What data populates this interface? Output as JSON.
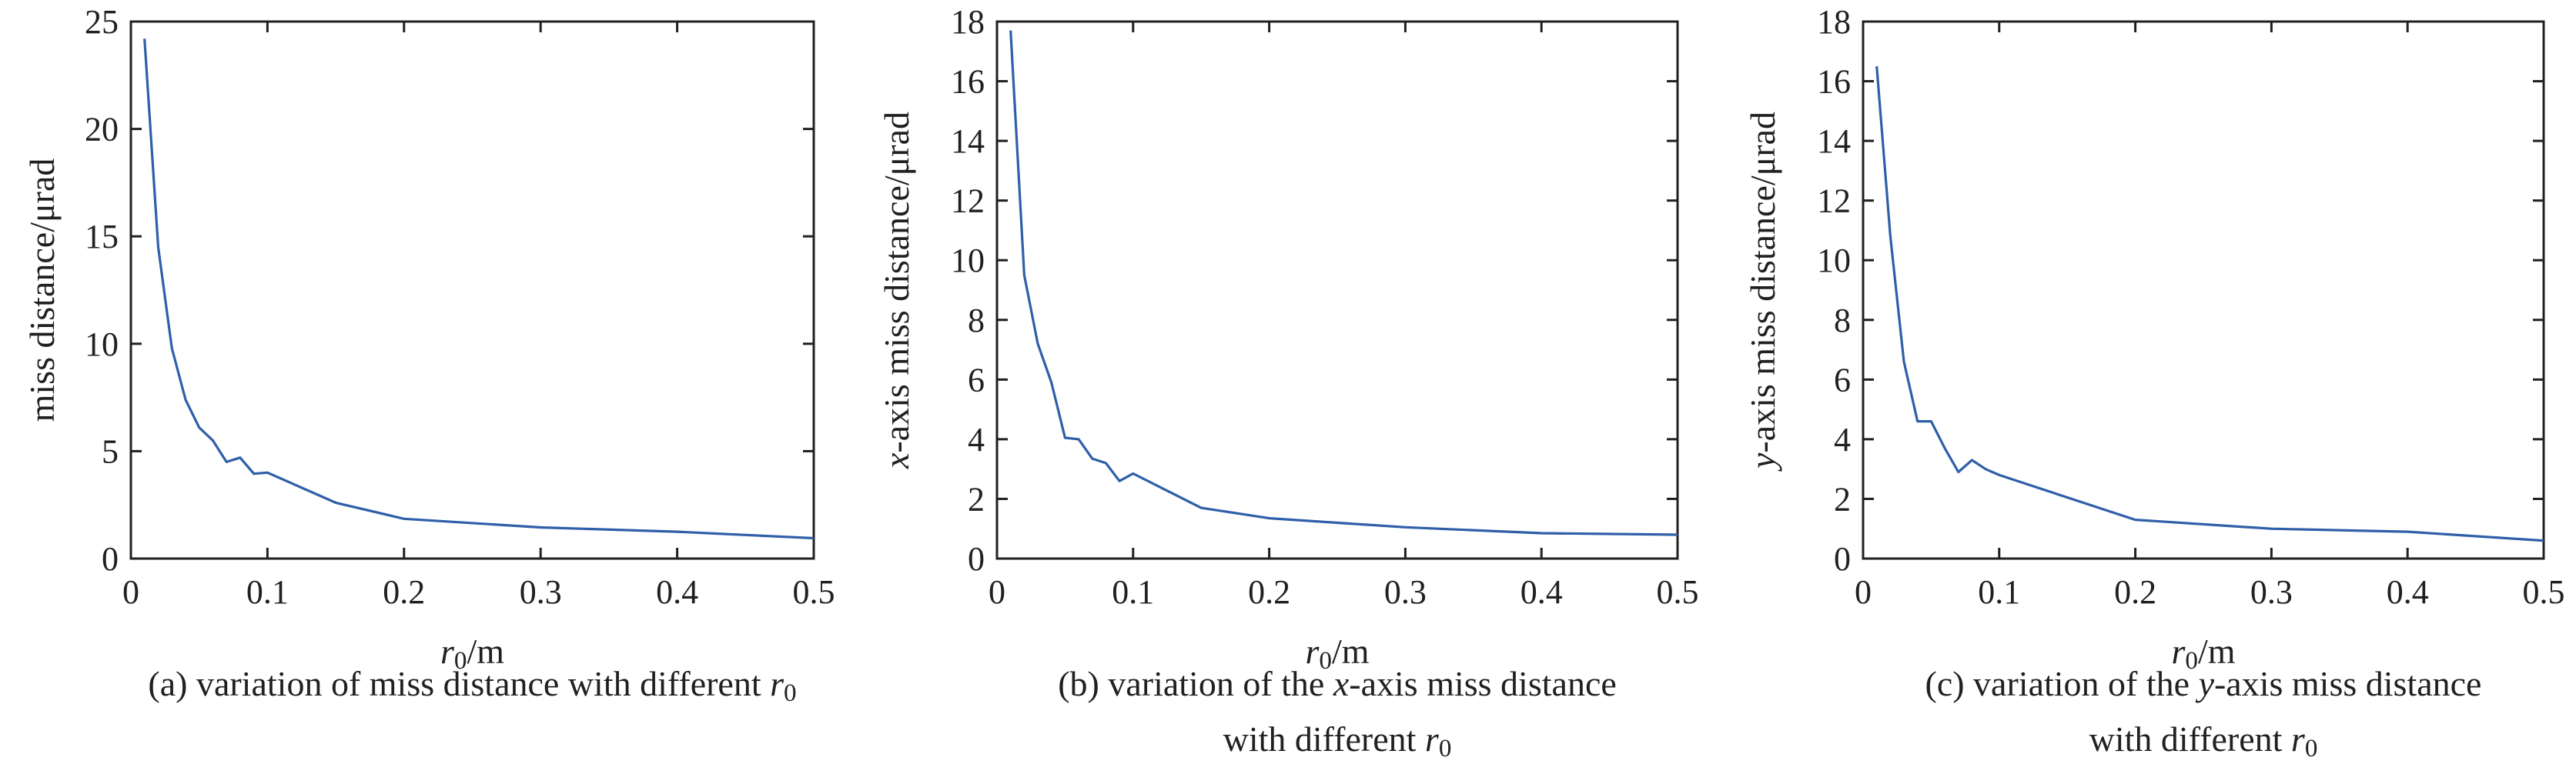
{
  "chart_data": [
    {
      "type": "line",
      "caption_lines": [
        [
          {
            "text": "(a) variation of miss distance with different ",
            "style": "normal"
          },
          {
            "text": "r",
            "style": "italic"
          },
          {
            "text": "0",
            "style": "sub"
          }
        ]
      ],
      "xlabel": [
        {
          "text": "r",
          "style": "italic"
        },
        {
          "text": "0",
          "style": "sub"
        },
        {
          "text": "/m",
          "style": "normal"
        }
      ],
      "ylabel": [
        {
          "text": "miss distance/μrad",
          "style": "normal"
        }
      ],
      "xlim": [
        0,
        0.5
      ],
      "ylim": [
        0,
        25
      ],
      "xticks": [
        "0",
        "0.1",
        "0.2",
        "0.3",
        "0.4",
        "0.5"
      ],
      "yticks": [
        "0",
        "5",
        "10",
        "15",
        "20",
        "25"
      ],
      "color": "#2e5fa8",
      "grid": false,
      "series": [
        {
          "x": [
            0.01,
            0.02,
            0.03,
            0.04,
            0.05,
            0.06,
            0.07,
            0.08,
            0.09,
            0.1,
            0.15,
            0.2,
            0.3,
            0.4,
            0.5
          ],
          "y": [
            24.2,
            14.5,
            9.8,
            7.4,
            6.1,
            5.5,
            4.5,
            4.7,
            3.95,
            4.0,
            2.6,
            1.85,
            1.45,
            1.25,
            0.95
          ]
        }
      ]
    },
    {
      "type": "line",
      "caption_lines": [
        [
          {
            "text": "(b) variation of the ",
            "style": "normal"
          },
          {
            "text": "x",
            "style": "italic"
          },
          {
            "text": "-axis miss distance",
            "style": "normal"
          }
        ],
        [
          {
            "text": "with different ",
            "style": "normal"
          },
          {
            "text": "r",
            "style": "italic"
          },
          {
            "text": "0",
            "style": "sub"
          }
        ]
      ],
      "xlabel": [
        {
          "text": "r",
          "style": "italic"
        },
        {
          "text": "0",
          "style": "sub"
        },
        {
          "text": "/m",
          "style": "normal"
        }
      ],
      "ylabel": [
        {
          "text": "x",
          "style": "italic"
        },
        {
          "text": "-axis miss distance/μrad",
          "style": "normal"
        }
      ],
      "xlim": [
        0,
        0.5
      ],
      "ylim": [
        0,
        18
      ],
      "xticks": [
        "0",
        "0.1",
        "0.2",
        "0.3",
        "0.4",
        "0.5"
      ],
      "yticks": [
        "0",
        "2",
        "4",
        "6",
        "8",
        "10",
        "12",
        "14",
        "16",
        "18"
      ],
      "color": "#2e5fa8",
      "grid": false,
      "series": [
        {
          "x": [
            0.01,
            0.02,
            0.03,
            0.04,
            0.05,
            0.06,
            0.07,
            0.08,
            0.09,
            0.1,
            0.15,
            0.2,
            0.3,
            0.4,
            0.5
          ],
          "y": [
            17.7,
            9.5,
            7.2,
            5.9,
            4.05,
            4.0,
            3.35,
            3.2,
            2.6,
            2.85,
            1.7,
            1.35,
            1.05,
            0.85,
            0.8
          ]
        }
      ]
    },
    {
      "type": "line",
      "caption_lines": [
        [
          {
            "text": "(c) variation of the ",
            "style": "normal"
          },
          {
            "text": "y",
            "style": "italic"
          },
          {
            "text": "-axis miss distance",
            "style": "normal"
          }
        ],
        [
          {
            "text": "with different ",
            "style": "normal"
          },
          {
            "text": "r",
            "style": "italic"
          },
          {
            "text": "0",
            "style": "sub"
          }
        ]
      ],
      "xlabel": [
        {
          "text": "r",
          "style": "italic"
        },
        {
          "text": "0",
          "style": "sub"
        },
        {
          "text": "/m",
          "style": "normal"
        }
      ],
      "ylabel": [
        {
          "text": "y",
          "style": "italic"
        },
        {
          "text": "-axis miss distance/μrad",
          "style": "normal"
        }
      ],
      "xlim": [
        0,
        0.5
      ],
      "ylim": [
        0,
        18
      ],
      "xticks": [
        "0",
        "0.1",
        "0.2",
        "0.3",
        "0.4",
        "0.5"
      ],
      "yticks": [
        "0",
        "2",
        "4",
        "6",
        "8",
        "10",
        "12",
        "14",
        "16",
        "18"
      ],
      "color": "#2e5fa8",
      "grid": false,
      "series": [
        {
          "x": [
            0.01,
            0.02,
            0.03,
            0.04,
            0.05,
            0.06,
            0.07,
            0.08,
            0.09,
            0.1,
            0.2,
            0.3,
            0.4,
            0.5
          ],
          "y": [
            16.5,
            10.8,
            6.6,
            4.6,
            4.6,
            3.7,
            2.9,
            3.3,
            3.0,
            2.8,
            1.3,
            1.0,
            0.9,
            0.6
          ]
        }
      ]
    }
  ]
}
